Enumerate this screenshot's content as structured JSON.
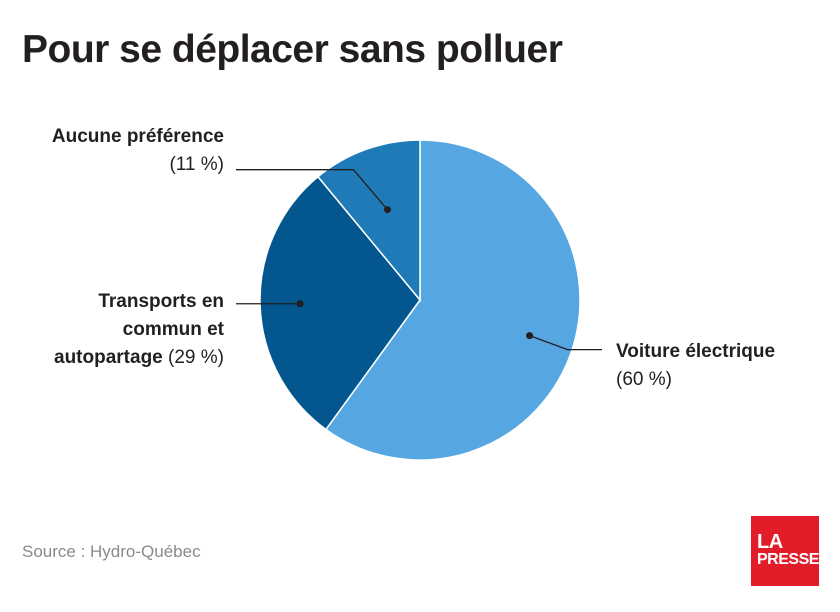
{
  "title": "Pour se déplacer sans polluer",
  "source": "Source : Hydro-Québec",
  "logo": {
    "line1": "LA",
    "line2": "PRESSE"
  },
  "chart_data": {
    "type": "pie",
    "title": "Pour se déplacer sans polluer",
    "start_angle_deg": 0,
    "direction": "clockwise",
    "slices": [
      {
        "key": "voiture",
        "name": "Voiture électrique",
        "value": 60,
        "label_pct": "(60 %)",
        "color": "#56a6e1"
      },
      {
        "key": "transports",
        "name": "Transports en commun et autopartage",
        "value": 29,
        "label_pct": "(29 %)",
        "color": "#04568f"
      },
      {
        "key": "aucune",
        "name": "Aucune préférence",
        "value": 11,
        "label_pct": "(11 %)",
        "color": "#1f7bb8"
      }
    ],
    "labels": {
      "voiture": {
        "line1": "Voiture électrique",
        "line2": "(60 %)"
      },
      "transports": {
        "line1": "Transports en",
        "line2": "commun et",
        "line3": "autopartage",
        "pct": "(29 %)"
      },
      "aucune": {
        "line1": "Aucune préférence",
        "line2": "(11 %)"
      }
    }
  }
}
